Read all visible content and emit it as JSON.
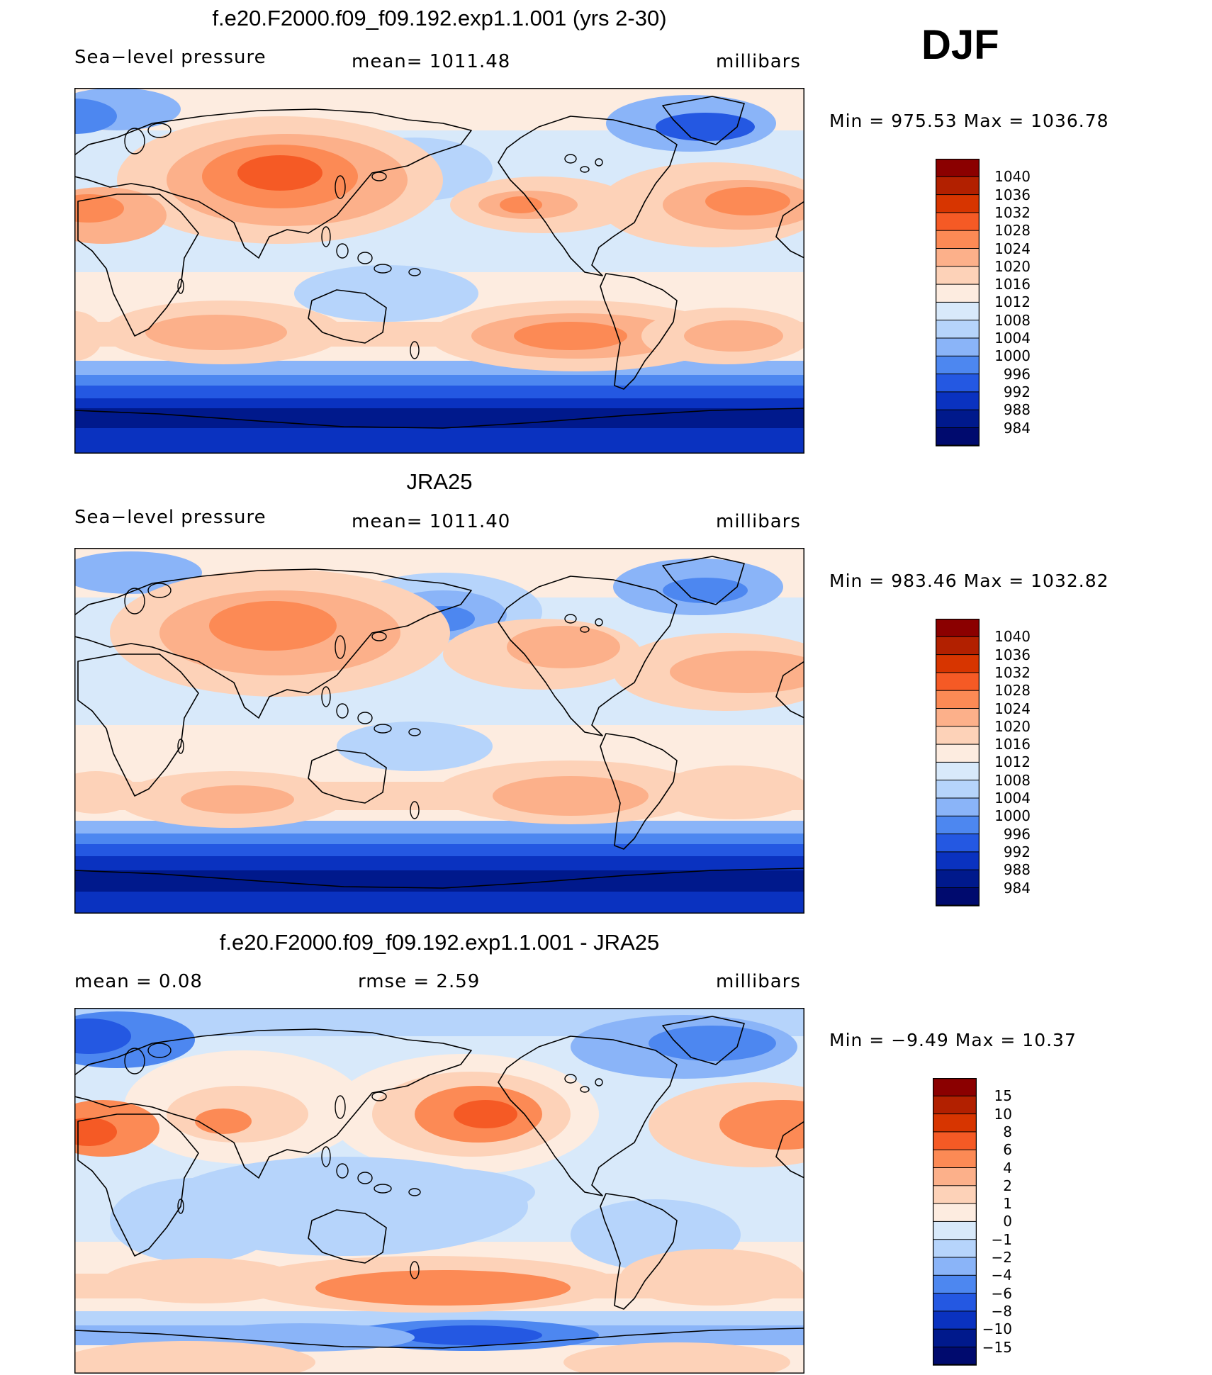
{
  "season": "DJF",
  "panels": [
    {
      "title": "f.e20.F2000.f09_f09.192.exp1.1.001 (yrs 2-30)",
      "left_label": "Sea−level pressure",
      "center_label": "mean=  1011.48",
      "right_label": "millibars",
      "minmax": "Min  =  975.53  Max  =  1036.78"
    },
    {
      "title": "JRA25",
      "left_label": "Sea−level pressure",
      "center_label": "mean=  1011.40",
      "right_label": "millibars",
      "minmax": "Min  =  983.46  Max  =  1032.82"
    },
    {
      "title": "f.e20.F2000.f09_f09.192.exp1.1.001 - JRA25",
      "left_label": "mean  =      0.08",
      "center_label": "rmse  =      2.59",
      "right_label": "millibars",
      "minmax": "Min  =   −9.49  Max  =    10.37"
    }
  ],
  "chart_data": [
    {
      "type": "heatmap",
      "title": "f.e20.F2000.f09_f09.192.exp1.1.001 (yrs 2-30)",
      "variable": "Sea−level pressure",
      "units": "millibars",
      "mean": 1011.48,
      "min": 975.53,
      "max": 1036.78,
      "colorbar_labels": [
        "1040",
        "1036",
        "1032",
        "1028",
        "1024",
        "1020",
        "1016",
        "1012",
        "1008",
        "1004",
        "1000",
        "996",
        "992",
        "988",
        "984"
      ],
      "colorbar_colors": [
        "#8b0000",
        "#b22000",
        "#d73500",
        "#f55a25",
        "#fc8a55",
        "#fcb08a",
        "#fdd2b8",
        "#fdece0",
        "#d8e9fa",
        "#b6d4fb",
        "#8ab4f8",
        "#4d87f0",
        "#2458e2",
        "#0a32c0",
        "#00198c",
        "#000a6e"
      ]
    },
    {
      "type": "heatmap",
      "title": "JRA25",
      "variable": "Sea−level pressure",
      "units": "millibars",
      "mean": 1011.4,
      "min": 983.46,
      "max": 1032.82,
      "colorbar_labels": [
        "1040",
        "1036",
        "1032",
        "1028",
        "1024",
        "1020",
        "1016",
        "1012",
        "1008",
        "1004",
        "1000",
        "996",
        "992",
        "988",
        "984"
      ],
      "colorbar_colors": [
        "#8b0000",
        "#b22000",
        "#d73500",
        "#f55a25",
        "#fc8a55",
        "#fcb08a",
        "#fdd2b8",
        "#fdece0",
        "#d8e9fa",
        "#b6d4fb",
        "#8ab4f8",
        "#4d87f0",
        "#2458e2",
        "#0a32c0",
        "#00198c",
        "#000a6e"
      ]
    },
    {
      "type": "heatmap",
      "title": "f.e20.F2000.f09_f09.192.exp1.1.001 - JRA25",
      "units": "millibars",
      "mean": 0.08,
      "rmse": 2.59,
      "min": -9.49,
      "max": 10.37,
      "colorbar_labels": [
        "15",
        "10",
        "8",
        "6",
        "4",
        "2",
        "1",
        "0",
        "−1",
        "−2",
        "−4",
        "−6",
        "−8",
        "−10",
        "−15"
      ],
      "colorbar_colors": [
        "#8b0000",
        "#b22000",
        "#d73500",
        "#f55a25",
        "#fc8a55",
        "#fcb08a",
        "#fdd2b8",
        "#fdece0",
        "#d8e9fa",
        "#b6d4fb",
        "#8ab4f8",
        "#4d87f0",
        "#2458e2",
        "#0a32c0",
        "#00198c",
        "#000a6e"
      ]
    }
  ]
}
